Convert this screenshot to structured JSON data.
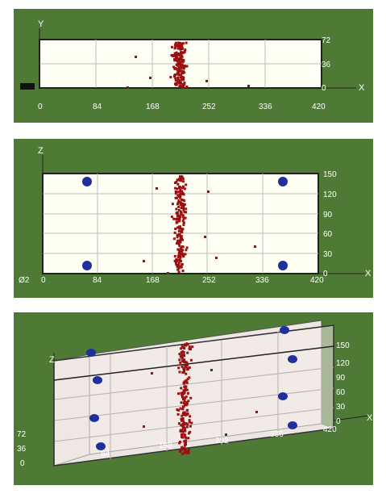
{
  "panels": {
    "top": {
      "axis_labels": {
        "x": "X",
        "y": "Y"
      },
      "x_ticks": [
        "0",
        "84",
        "168",
        "252",
        "336",
        "420"
      ],
      "y_ticks": [
        "72",
        "36",
        "0"
      ]
    },
    "middle": {
      "axis_labels": {
        "x": "X",
        "z": "Z"
      },
      "x_ticks": [
        "0",
        "84",
        "168",
        "252",
        "336",
        "420"
      ],
      "z_ticks": [
        "150",
        "120",
        "90",
        "60",
        "30",
        "0"
      ],
      "origin_label": "Ø2"
    },
    "bottom": {
      "axis_labels": {
        "x": "X",
        "z": "Z"
      },
      "x_ticks": [
        "84",
        "168",
        "252",
        "336",
        "420"
      ],
      "z_ticks": [
        "150",
        "120",
        "90",
        "60",
        "30",
        "0"
      ],
      "y_ticks": [
        "72",
        "36",
        "0"
      ]
    }
  },
  "colors": {
    "background": "#4f7a35",
    "plane": "#fffff4",
    "points": "#9b1111",
    "markers": "#1f2f9e"
  }
}
